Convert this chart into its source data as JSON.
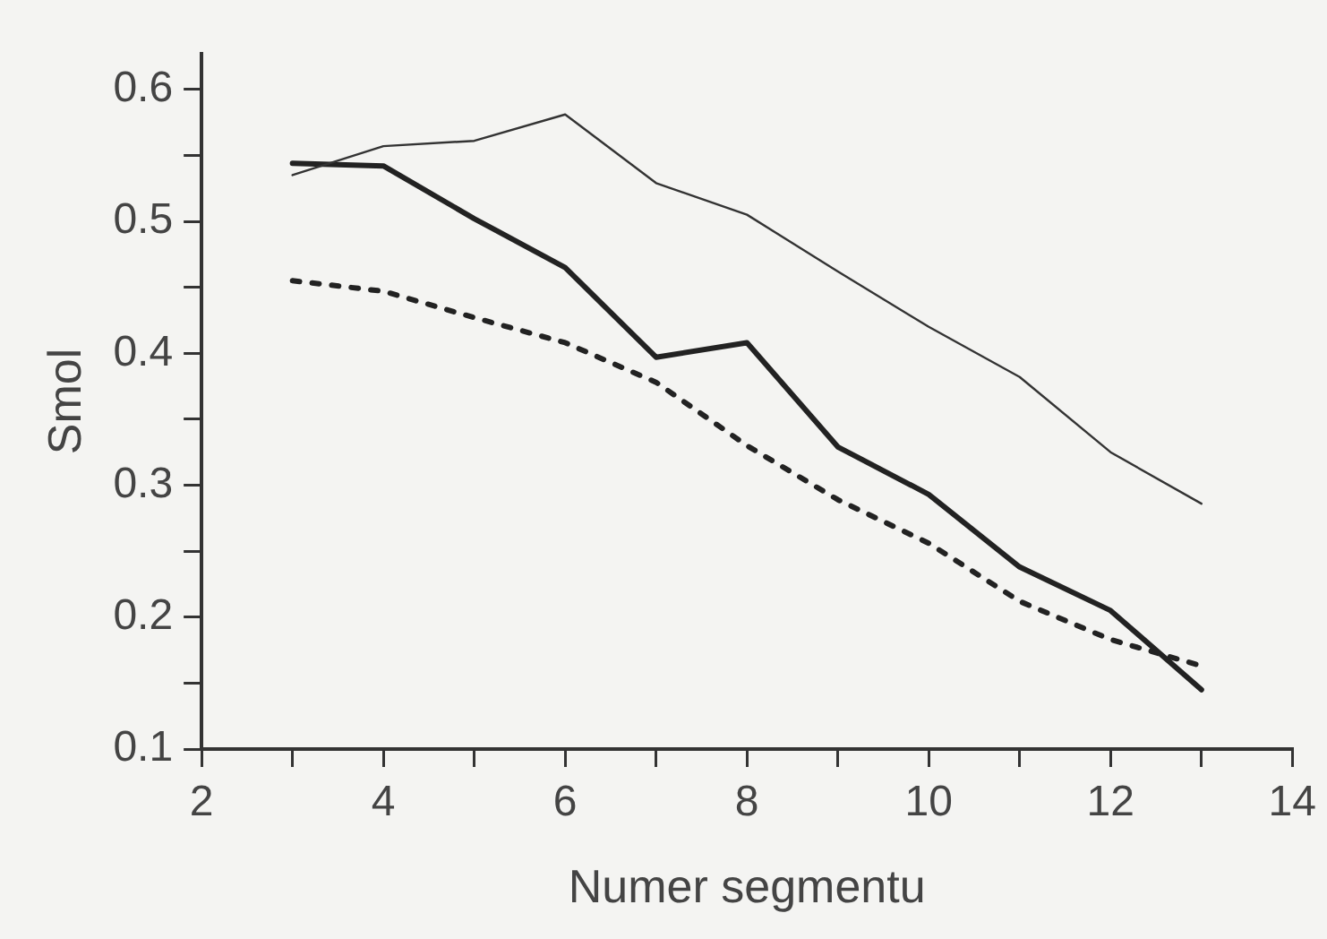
{
  "chart_data": {
    "type": "line",
    "xlabel": "Numer segmentu",
    "ylabel": "Smol",
    "x": [
      3,
      4,
      5,
      6,
      7,
      8,
      9,
      10,
      11,
      12,
      13
    ],
    "series": [
      {
        "color": "#333333",
        "line_style": "solid",
        "values": [
          0.535,
          0.557,
          0.561,
          0.581,
          0.529,
          0.505,
          0.462,
          0.42,
          0.382,
          0.325,
          0.286
        ]
      },
      {
        "color": "#222222",
        "line_style": "solid",
        "values": [
          0.544,
          0.542,
          0.502,
          0.465,
          0.397,
          0.408,
          0.329,
          0.293,
          0.238,
          0.205,
          0.145
        ]
      },
      {
        "color": "#222222",
        "line_style": "dashed",
        "values": [
          0.455,
          0.447,
          0.427,
          0.408,
          0.378,
          0.33,
          0.289,
          0.256,
          0.212,
          0.183,
          0.163
        ]
      }
    ],
    "xlim": [
      2,
      14
    ],
    "ylim": [
      0.1,
      0.627
    ],
    "xticks": [
      2,
      {
        "value": 3,
        "label": null
      },
      4,
      {
        "value": 5,
        "label": null
      },
      6,
      {
        "value": 7,
        "label": null
      },
      8,
      {
        "value": 9,
        "label": null
      },
      10,
      {
        "value": 11,
        "label": null
      },
      12,
      {
        "value": 13,
        "label": null
      },
      14
    ],
    "yticks": [
      0.1,
      {
        "value": 0.15,
        "label": null
      },
      0.2,
      {
        "value": 0.25,
        "label": null
      },
      0.3,
      {
        "value": 0.35,
        "label": null
      },
      0.4,
      {
        "value": 0.45,
        "label": null
      },
      0.5,
      {
        "value": 0.55,
        "label": null
      },
      0.6
    ],
    "grid": false,
    "legend": false,
    "marker": "none"
  }
}
